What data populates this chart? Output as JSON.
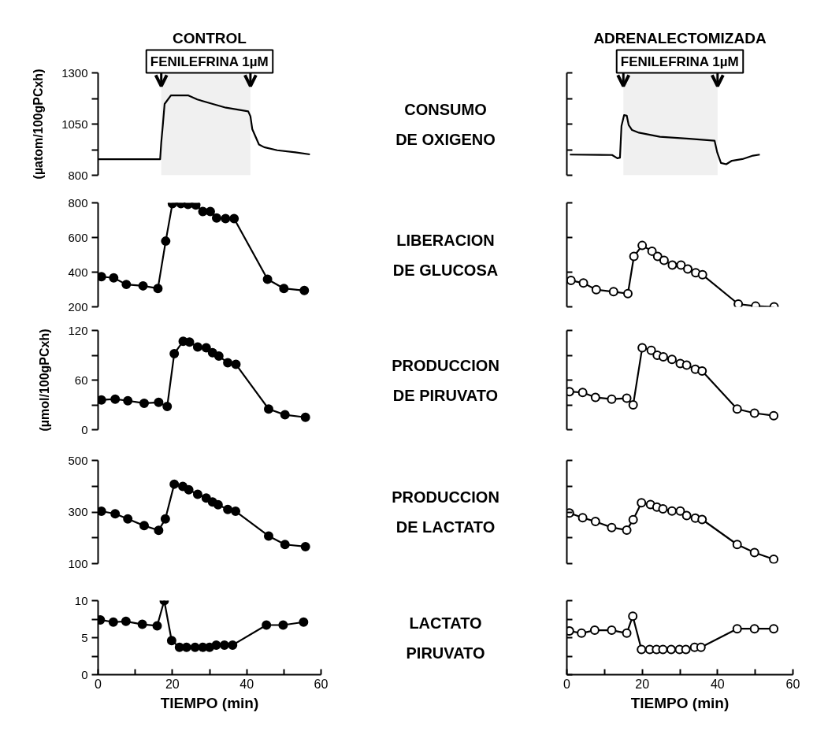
{
  "chart_data": [
    {
      "type": "line",
      "title": "CONTROL",
      "ylabel": "(µatom/100gPCxh)",
      "annotations": [
        "CONSUMO",
        "DE OXIGENO"
      ],
      "bands": [
        {
          "axis": "x",
          "from": 17,
          "to": 41,
          "label": "FENILEFRINA 1µM"
        }
      ],
      "marker": "none",
      "tick_labels": "y",
      "xlim": [
        0,
        60
      ],
      "ylim": [
        800,
        1300
      ],
      "yticks": [
        800,
        {
          "value": 925,
          "label": null
        },
        1050,
        {
          "value": 1175,
          "label": null
        },
        1300
      ],
      "x": [
        0,
        16.7,
        17.0,
        17.4,
        17.9,
        19.6,
        24.2,
        26.7,
        30.5,
        34.4,
        40.4,
        41.0,
        41.5,
        43.3,
        44.7,
        48.2,
        53.1,
        57.0
      ],
      "series": [
        {
          "color": "#000000",
          "values": [
            878,
            878,
            960,
            1040,
            1148,
            1190,
            1190,
            1170,
            1150,
            1130,
            1112,
            1088,
            1025,
            950,
            937,
            922,
            912,
            902
          ]
        }
      ]
    },
    {
      "type": "line",
      "title": "ADRENALECTOMIZADA",
      "bands": [
        {
          "axis": "x",
          "from": 15,
          "to": 40,
          "label": "FENILEFRINA 1µM"
        }
      ],
      "marker": "none",
      "tick_labels": false,
      "xlim": [
        0,
        60
      ],
      "ylim": [
        800,
        1300
      ],
      "yticks": [
        800,
        925,
        1050,
        1175,
        1300
      ],
      "x": [
        0.8,
        12.0,
        13.4,
        14.1,
        14.5,
        15.2,
        15.9,
        16.4,
        17.3,
        19.1,
        24.7,
        32.5,
        39.2,
        39.9,
        40.9,
        42.3,
        43.8,
        46.6,
        49.4,
        51.2
      ],
      "series": [
        {
          "color": "#000000",
          "values": [
            901,
            899,
            883,
            886,
            1040,
            1094,
            1091,
            1046,
            1021,
            1008,
            988,
            978,
            969,
            912,
            860,
            854,
            871,
            879,
            896,
            901
          ]
        }
      ]
    },
    {
      "type": "line",
      "annotations": [
        "LIBERACION",
        "DE GLUCOSA"
      ],
      "marker": "circle",
      "tick_labels": "y",
      "xlim": [
        0,
        60
      ],
      "ylim": [
        200,
        800
      ],
      "yticks": [
        200,
        400,
        600,
        800
      ],
      "x": [
        0.9,
        4.2,
        7.6,
        12.1,
        16.1,
        18.2,
        20.0,
        22.3,
        24.2,
        26.3,
        28.2,
        30.2,
        31.9,
        34.3,
        36.6,
        45.6,
        50.0,
        55.5
      ],
      "series": [
        {
          "color": "#000000",
          "values": [
            374,
            367,
            329,
            321,
            306,
            579,
            795,
            795,
            791,
            788,
            750,
            750,
            712,
            709,
            709,
            359,
            306,
            294
          ]
        }
      ]
    },
    {
      "type": "line",
      "marker": "circle",
      "tick_labels": false,
      "xlim": [
        0,
        60
      ],
      "ylim": [
        200,
        800
      ],
      "yticks": [
        200,
        400,
        600,
        800
      ],
      "x": [
        1.1,
        4.4,
        7.8,
        12.4,
        16.2,
        17.8,
        20.0,
        22.6,
        24.1,
        25.8,
        28.0,
        30.3,
        32.1,
        34.2,
        36.0,
        45.5,
        50.1,
        55.0
      ],
      "series": [
        {
          "color": "#000000",
          "values": [
            352,
            337,
            299,
            287,
            276,
            491,
            554,
            521,
            491,
            468,
            441,
            441,
            418,
            397,
            385,
            216,
            204,
            200
          ]
        }
      ]
    },
    {
      "type": "line",
      "ylabel": "(µmol/100gPCxh)",
      "annotations": [
        "PRODUCCION",
        "DE PIRUVATO"
      ],
      "marker": "circle",
      "tick_labels": "y",
      "xlim": [
        0,
        60
      ],
      "ylim": [
        0,
        120
      ],
      "yticks": [
        0,
        {
          "value": 30,
          "label": null
        },
        60,
        {
          "value": 90,
          "label": null
        },
        120
      ],
      "x": [
        0.9,
        4.6,
        8.0,
        12.4,
        16.3,
        18.6,
        20.5,
        22.9,
        24.6,
        26.8,
        29.1,
        30.8,
        32.5,
        34.9,
        37.1,
        45.9,
        50.3,
        55.8
      ],
      "series": [
        {
          "color": "#000000",
          "values": [
            36,
            37,
            35,
            32,
            33,
            28,
            92,
            107,
            106,
            100,
            99,
            93,
            89,
            81,
            79,
            25,
            18,
            15
          ]
        }
      ]
    },
    {
      "type": "line",
      "marker": "circle",
      "tick_labels": false,
      "xlim": [
        0,
        60
      ],
      "ylim": [
        0,
        120
      ],
      "yticks": [
        0,
        30,
        60,
        90,
        120
      ],
      "x": [
        0.7,
        4.2,
        7.6,
        11.9,
        15.9,
        17.6,
        20.0,
        22.4,
        24.0,
        25.6,
        27.9,
        30.1,
        31.8,
        34.1,
        35.9,
        45.2,
        49.8,
        54.9
      ],
      "series": [
        {
          "color": "#000000",
          "values": [
            46,
            45,
            39,
            37,
            38,
            30,
            99,
            96,
            90,
            88,
            85,
            80,
            78,
            73,
            71,
            25,
            20,
            17
          ]
        }
      ]
    },
    {
      "type": "line",
      "annotations": [
        "PRODUCCION",
        "DE LACTATO"
      ],
      "marker": "circle",
      "tick_labels": "y",
      "xlim": [
        0,
        60
      ],
      "ylim": [
        100,
        500
      ],
      "yticks": [
        100,
        {
          "value": 200,
          "label": null
        },
        300,
        {
          "value": 400,
          "label": null
        },
        500
      ],
      "x": [
        0.9,
        4.6,
        8.0,
        12.4,
        16.3,
        18.1,
        20.5,
        22.8,
        24.4,
        26.8,
        29.1,
        30.8,
        32.3,
        34.9,
        37.0,
        45.9,
        50.3,
        55.8
      ],
      "series": [
        {
          "color": "#000000",
          "values": [
            303,
            293,
            273,
            247,
            229,
            273,
            408,
            399,
            386,
            369,
            354,
            339,
            328,
            310,
            303,
            207,
            174,
            166
          ]
        }
      ]
    },
    {
      "type": "line",
      "marker": "circle",
      "tick_labels": false,
      "xlim": [
        0,
        60
      ],
      "ylim": [
        100,
        500
      ],
      "yticks": [
        100,
        200,
        300,
        400,
        500
      ],
      "x": [
        0.7,
        4.2,
        7.6,
        11.9,
        15.9,
        17.6,
        19.8,
        22.2,
        23.9,
        25.5,
        27.9,
        30.1,
        31.8,
        34.1,
        35.9,
        45.2,
        49.8,
        54.9
      ],
      "series": [
        {
          "color": "#000000",
          "values": [
            296,
            278,
            263,
            240,
            230,
            270,
            336,
            329,
            319,
            312,
            304,
            304,
            286,
            276,
            271,
            174,
            143,
            117
          ]
        }
      ]
    },
    {
      "type": "line",
      "annotations": [
        "LACTATO",
        "PIRUVATO"
      ],
      "xlabel": "TIEMPO (min)",
      "marker": "circle",
      "xlim": [
        0,
        60
      ],
      "xticks": [
        0,
        {
          "value": 10,
          "label": null
        },
        20,
        {
          "value": 30,
          "label": null
        },
        40,
        {
          "value": 50,
          "label": null
        },
        60
      ],
      "ylim": [
        0,
        10
      ],
      "yticks": [
        0,
        {
          "value": 2.5,
          "label": null
        },
        5,
        {
          "value": 7.5,
          "label": null
        },
        10
      ],
      "x": [
        0.6,
        4.1,
        7.5,
        11.9,
        15.9,
        17.8,
        19.8,
        21.9,
        23.8,
        26.1,
        28.2,
        30.0,
        31.8,
        34.0,
        36.2,
        45.3,
        49.8,
        55.3
      ],
      "series": [
        {
          "color": "#000000",
          "values": [
            7.4,
            7.1,
            7.2,
            6.8,
            6.6,
            10.0,
            4.6,
            3.7,
            3.7,
            3.7,
            3.7,
            3.7,
            4.0,
            4.0,
            4.0,
            6.7,
            6.7,
            7.1
          ]
        }
      ]
    },
    {
      "type": "line",
      "xlabel": "TIEMPO (min)",
      "marker": "circle",
      "tick_labels": "x",
      "xlim": [
        0,
        60
      ],
      "xticks": [
        0,
        {
          "value": 10,
          "label": null
        },
        20,
        {
          "value": 30,
          "label": null
        },
        40,
        {
          "value": 50,
          "label": null
        },
        60
      ],
      "ylim": [
        0,
        10
      ],
      "yticks": [
        0,
        2.5,
        5,
        7.5,
        10
      ],
      "x": [
        0.7,
        3.9,
        7.4,
        11.9,
        15.9,
        17.5,
        19.8,
        22.0,
        23.8,
        25.5,
        27.7,
        29.9,
        31.6,
        33.9,
        35.6,
        45.2,
        49.8,
        54.9
      ],
      "series": [
        {
          "color": "#000000",
          "values": [
            5.9,
            5.6,
            6.0,
            6.0,
            5.6,
            7.9,
            3.4,
            3.4,
            3.4,
            3.4,
            3.4,
            3.4,
            3.4,
            3.7,
            3.7,
            6.2,
            6.2,
            6.2
          ]
        }
      ]
    }
  ]
}
